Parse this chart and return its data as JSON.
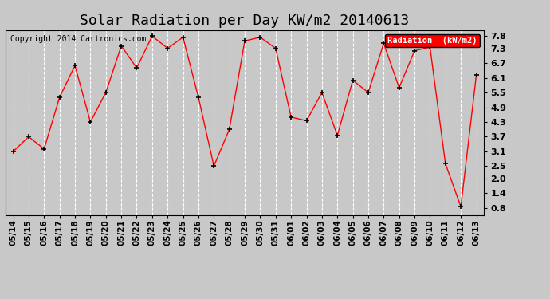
{
  "title": "Solar Radiation per Day KW/m2 20140613",
  "copyright_text": "Copyright 2014 Cartronics.com",
  "legend_label": "Radiation  (kW/m2)",
  "x_labels": [
    "05/14",
    "05/15",
    "05/16",
    "05/17",
    "05/18",
    "05/19",
    "05/20",
    "05/21",
    "05/22",
    "05/23",
    "05/24",
    "05/25",
    "05/26",
    "05/27",
    "05/28",
    "05/29",
    "05/30",
    "05/31",
    "06/01",
    "06/02",
    "06/03",
    "06/04",
    "06/05",
    "06/06",
    "06/07",
    "06/08",
    "06/09",
    "06/10",
    "06/11",
    "06/12",
    "06/13"
  ],
  "y_values": [
    3.1,
    3.7,
    3.2,
    5.3,
    6.6,
    4.3,
    5.5,
    7.4,
    6.5,
    7.8,
    7.3,
    7.75,
    5.3,
    2.5,
    4.0,
    7.6,
    7.75,
    7.3,
    4.5,
    4.35,
    5.5,
    3.75,
    6.0,
    5.5,
    7.5,
    5.7,
    7.2,
    7.35,
    2.6,
    0.85,
    6.2
  ],
  "y_ticks": [
    0.8,
    1.4,
    2.0,
    2.5,
    3.1,
    3.7,
    4.3,
    4.9,
    5.5,
    6.1,
    6.7,
    7.3,
    7.8
  ],
  "ylim": [
    0.5,
    8.05
  ],
  "line_color": "red",
  "marker_color": "black",
  "bg_color": "#c8c8c8",
  "plot_bg_color": "#c8c8c8",
  "grid_color": "white",
  "title_fontsize": 13,
  "legend_bg": "red",
  "legend_text_color": "white"
}
